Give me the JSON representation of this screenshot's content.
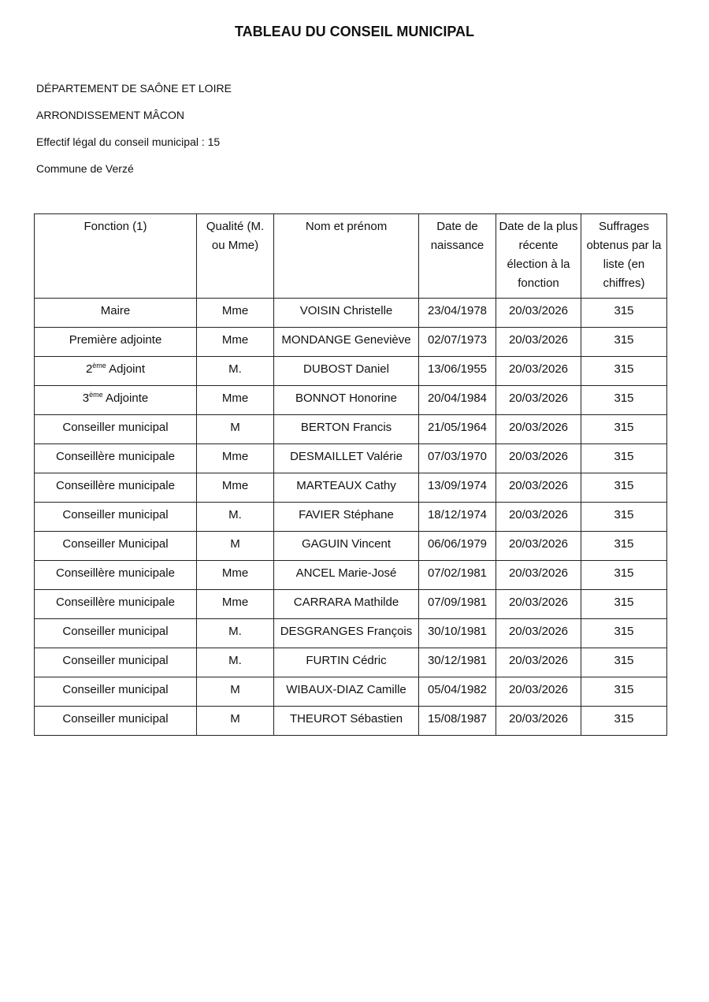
{
  "title": "TABLEAU DU CONSEIL MUNICIPAL",
  "meta": {
    "departement": "DÉPARTEMENT DE SAÔNE ET LOIRE",
    "arrondissement": "ARRONDISSEMENT MÂCON",
    "effectif": "Effectif légal du conseil municipal : 15",
    "commune": "Commune de Verzé"
  },
  "table": {
    "headers": [
      "Fonction (1)",
      "Qualité (M. ou Mme)",
      "Nom et prénom",
      "Date de naissance",
      "Date de la plus récente élection à la fonction",
      "Suffrages obtenus par la liste (en chiffres)"
    ],
    "rows": [
      {
        "fonction": "Maire",
        "qualite": "Mme",
        "nom": "VOISIN Christelle",
        "naissance": "23/04/1978",
        "election": "20/03/2026",
        "suffrages": "315"
      },
      {
        "fonction": "Première adjointe",
        "qualite": "Mme",
        "nom": "MONDANGE Geneviève",
        "naissance": "02/07/1973",
        "election": "20/03/2026",
        "suffrages": "315"
      },
      {
        "fonction_num": "2",
        "fonction_sup": "ème",
        "fonction": " Adjoint",
        "qualite": "M.",
        "nom": "DUBOST Daniel",
        "naissance": "13/06/1955",
        "election": "20/03/2026",
        "suffrages": "315"
      },
      {
        "fonction_num": "3",
        "fonction_sup": "ème",
        "fonction": " Adjointe",
        "qualite": "Mme",
        "nom": "BONNOT Honorine",
        "naissance": "20/04/1984",
        "election": "20/03/2026",
        "suffrages": "315"
      },
      {
        "fonction": "Conseiller municipal",
        "qualite": "M",
        "nom": "BERTON Francis",
        "naissance": "21/05/1964",
        "election": "20/03/2026",
        "suffrages": "315"
      },
      {
        "fonction": "Conseillère municipale",
        "qualite": "Mme",
        "nom": "DESMAILLET Valérie",
        "naissance": "07/03/1970",
        "election": "20/03/2026",
        "suffrages": "315"
      },
      {
        "fonction": "Conseillère municipale",
        "qualite": "Mme",
        "nom": "MARTEAUX Cathy",
        "naissance": "13/09/1974",
        "election": "20/03/2026",
        "suffrages": "315"
      },
      {
        "fonction": "Conseiller municipal",
        "qualite": "M.",
        "nom": "FAVIER Stéphane",
        "naissance": "18/12/1974",
        "election": "20/03/2026",
        "suffrages": "315"
      },
      {
        "fonction": "Conseiller Municipal",
        "qualite": "M",
        "nom": "GAGUIN Vincent",
        "naissance": "06/06/1979",
        "election": "20/03/2026",
        "suffrages": "315"
      },
      {
        "fonction": "Conseillère municipale",
        "qualite": "Mme",
        "nom": "ANCEL Marie-José",
        "naissance": "07/02/1981",
        "election": "20/03/2026",
        "suffrages": "315"
      },
      {
        "fonction": "Conseillère municipale",
        "qualite": "Mme",
        "nom": "CARRARA Mathilde",
        "naissance": "07/09/1981",
        "election": "20/03/2026",
        "suffrages": "315"
      },
      {
        "fonction": "Conseiller municipal",
        "qualite": "M.",
        "nom": "DESGRANGES François",
        "naissance": "30/10/1981",
        "election": "20/03/2026",
        "suffrages": "315"
      },
      {
        "fonction": "Conseiller municipal",
        "qualite": "M.",
        "nom": "FURTIN Cédric",
        "naissance": "30/12/1981",
        "election": "20/03/2026",
        "suffrages": "315"
      },
      {
        "fonction": "Conseiller municipal",
        "qualite": "M",
        "nom": "WIBAUX-DIAZ Camille",
        "naissance": "05/04/1982",
        "election": "20/03/2026",
        "suffrages": "315"
      },
      {
        "fonction": "Conseiller municipal",
        "qualite": "M",
        "nom": "THEUROT Sébastien",
        "naissance": "15/08/1987",
        "election": "20/03/2026",
        "suffrages": "315"
      }
    ]
  }
}
